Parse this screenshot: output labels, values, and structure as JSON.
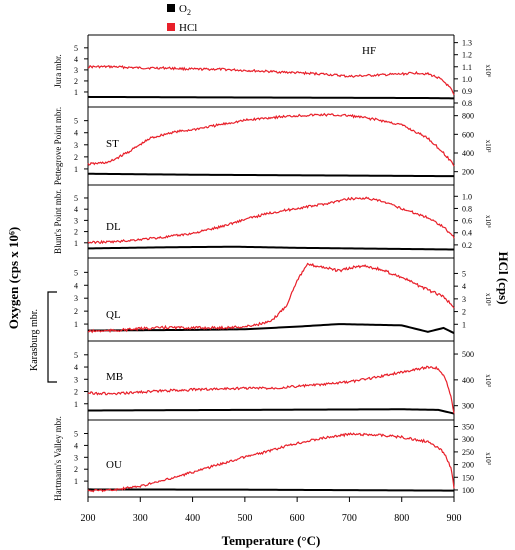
{
  "chart_data": {
    "type": "line",
    "legend": {
      "placement": "top-center",
      "entries": [
        {
          "name": "O2",
          "color": "#000000"
        },
        {
          "name": "HCl",
          "color": "#e8202a"
        }
      ]
    },
    "xlabel": "Temperature (°C)",
    "ylabel_left": "Oxygen (cps x 10⁶)",
    "ylabel_right": "HCl (cps)",
    "x_ticks": [
      200,
      300,
      400,
      500,
      600,
      700,
      800,
      900
    ],
    "xlim": [
      200,
      900
    ],
    "group_label": "Karasburg mbr.",
    "panels": [
      {
        "sample": "HF",
        "member": "Jura mbr.",
        "left_ticks": [
          1,
          2,
          3,
          4,
          5
        ],
        "left_range": [
          0,
          5.8
        ],
        "right_ticks": [
          "0.8",
          "0.9",
          "1.0",
          "1.1",
          "1.2",
          "1.3"
        ],
        "right_range": [
          0.8,
          1.33
        ],
        "right_multiplier": "x10⁶",
        "hcl": [
          [
            200,
            1.1
          ],
          [
            250,
            1.1
          ],
          [
            300,
            1.09
          ],
          [
            350,
            1.09
          ],
          [
            400,
            1.08
          ],
          [
            450,
            1.08
          ],
          [
            500,
            1.07
          ],
          [
            550,
            1.06
          ],
          [
            600,
            1.05
          ],
          [
            650,
            1.04
          ],
          [
            700,
            1.02
          ],
          [
            750,
            1.03
          ],
          [
            800,
            1.04
          ],
          [
            830,
            1.05
          ],
          [
            850,
            1.04
          ],
          [
            870,
            1.01
          ],
          [
            885,
            0.96
          ],
          [
            895,
            0.91
          ],
          [
            900,
            0.86
          ]
        ],
        "o2": [
          [
            200,
            0.55
          ],
          [
            500,
            0.5
          ],
          [
            850,
            0.45
          ],
          [
            900,
            0.42
          ]
        ]
      },
      {
        "sample": "ST",
        "member": "Pettegrove Point mbr.",
        "left_ticks": [
          1,
          2,
          3,
          4,
          5
        ],
        "left_range": [
          0,
          5.8
        ],
        "right_ticks": [
          "200",
          "400",
          "600",
          "800"
        ],
        "right_range": [
          100,
          850
        ],
        "right_multiplier": "x10³",
        "hcl": [
          [
            200,
            280
          ],
          [
            240,
            300
          ],
          [
            280,
            420
          ],
          [
            320,
            560
          ],
          [
            360,
            620
          ],
          [
            400,
            650
          ],
          [
            450,
            700
          ],
          [
            500,
            750
          ],
          [
            550,
            780
          ],
          [
            600,
            800
          ],
          [
            650,
            810
          ],
          [
            700,
            800
          ],
          [
            750,
            760
          ],
          [
            800,
            700
          ],
          [
            850,
            560
          ],
          [
            880,
            400
          ],
          [
            900,
            270
          ]
        ],
        "o2": [
          [
            200,
            0.6
          ],
          [
            400,
            0.52
          ],
          [
            700,
            0.45
          ],
          [
            900,
            0.4
          ]
        ]
      },
      {
        "sample": "DL",
        "member": "Blunt's Point mbr.",
        "left_ticks": [
          1,
          2,
          3,
          4,
          5
        ],
        "left_range": [
          0,
          5.8
        ],
        "right_ticks": [
          "0.2",
          "0.4",
          "0.6",
          "0.8",
          "1.0"
        ],
        "right_range": [
          0.05,
          1.12
        ],
        "right_multiplier": "x10⁶",
        "hcl": [
          [
            200,
            0.24
          ],
          [
            250,
            0.25
          ],
          [
            300,
            0.29
          ],
          [
            350,
            0.33
          ],
          [
            400,
            0.39
          ],
          [
            450,
            0.49
          ],
          [
            500,
            0.62
          ],
          [
            550,
            0.73
          ],
          [
            600,
            0.8
          ],
          [
            650,
            0.87
          ],
          [
            700,
            0.96
          ],
          [
            730,
            0.97
          ],
          [
            760,
            0.92
          ],
          [
            800,
            0.8
          ],
          [
            850,
            0.65
          ],
          [
            880,
            0.5
          ],
          [
            900,
            0.32
          ]
        ],
        "o2": [
          [
            200,
            0.5
          ],
          [
            350,
            0.6
          ],
          [
            480,
            0.65
          ],
          [
            600,
            0.55
          ],
          [
            800,
            0.45
          ],
          [
            900,
            0.4
          ]
        ]
      },
      {
        "sample": "QL",
        "member": "",
        "left_ticks": [
          1,
          2,
          3,
          4,
          5
        ],
        "left_range": [
          0,
          5.8
        ],
        "right_ticks": [
          "1",
          "2",
          "3",
          "4",
          "5"
        ],
        "right_range": [
          0,
          5.9
        ],
        "right_multiplier": "x10⁶",
        "hcl": [
          [
            200,
            0.45
          ],
          [
            250,
            0.5
          ],
          [
            300,
            0.65
          ],
          [
            350,
            0.75
          ],
          [
            400,
            0.72
          ],
          [
            450,
            0.72
          ],
          [
            500,
            0.8
          ],
          [
            550,
            1.2
          ],
          [
            580,
            2.5
          ],
          [
            600,
            4.5
          ],
          [
            620,
            5.7
          ],
          [
            650,
            5.5
          ],
          [
            680,
            5.2
          ],
          [
            710,
            5.5
          ],
          [
            730,
            5.6
          ],
          [
            760,
            5.3
          ],
          [
            800,
            4.7
          ],
          [
            850,
            3.7
          ],
          [
            880,
            3.2
          ],
          [
            900,
            2.3
          ]
        ],
        "o2": [
          [
            200,
            0.5
          ],
          [
            400,
            0.55
          ],
          [
            500,
            0.6
          ],
          [
            600,
            0.8
          ],
          [
            680,
            1.0
          ],
          [
            800,
            0.9
          ],
          [
            850,
            0.4
          ],
          [
            880,
            0.7
          ],
          [
            900,
            0.3
          ]
        ]
      },
      {
        "sample": "MB",
        "member": "",
        "left_ticks": [
          1,
          2,
          3,
          4,
          5
        ],
        "left_range": [
          0,
          5.8
        ],
        "right_ticks": [
          "300",
          "400",
          "500"
        ],
        "right_range": [
          260,
          535
        ],
        "right_multiplier": "x10³",
        "hcl": [
          [
            200,
            350
          ],
          [
            250,
            345
          ],
          [
            300,
            353
          ],
          [
            350,
            358
          ],
          [
            400,
            362
          ],
          [
            450,
            365
          ],
          [
            500,
            368
          ],
          [
            550,
            368
          ],
          [
            600,
            375
          ],
          [
            650,
            382
          ],
          [
            700,
            392
          ],
          [
            750,
            410
          ],
          [
            800,
            430
          ],
          [
            850,
            450
          ],
          [
            870,
            445
          ],
          [
            885,
            400
          ],
          [
            895,
            330
          ],
          [
            900,
            270
          ]
        ],
        "o2": [
          [
            200,
            0.45
          ],
          [
            500,
            0.5
          ],
          [
            800,
            0.55
          ],
          [
            870,
            0.5
          ],
          [
            900,
            0.2
          ]
        ]
      },
      {
        "sample": "OU",
        "member": "Hartmann's Valley mbr.",
        "left_ticks": [
          1,
          2,
          3,
          4,
          5
        ],
        "left_range": [
          0,
          5.8
        ],
        "right_ticks": [
          "100",
          "150",
          "200",
          "250",
          "300",
          "350"
        ],
        "right_range": [
          88,
          360
        ],
        "right_multiplier": "x10³",
        "hcl": [
          [
            200,
            97
          ],
          [
            250,
            100
          ],
          [
            300,
            115
          ],
          [
            350,
            140
          ],
          [
            400,
            170
          ],
          [
            450,
            200
          ],
          [
            500,
            230
          ],
          [
            550,
            255
          ],
          [
            600,
            285
          ],
          [
            650,
            305
          ],
          [
            700,
            320
          ],
          [
            750,
            318
          ],
          [
            800,
            308
          ],
          [
            850,
            290
          ],
          [
            880,
            250
          ],
          [
            895,
            185
          ],
          [
            900,
            105
          ]
        ],
        "o2": [
          [
            200,
            0.3
          ],
          [
            500,
            0.28
          ],
          [
            900,
            0.2
          ]
        ]
      }
    ]
  }
}
